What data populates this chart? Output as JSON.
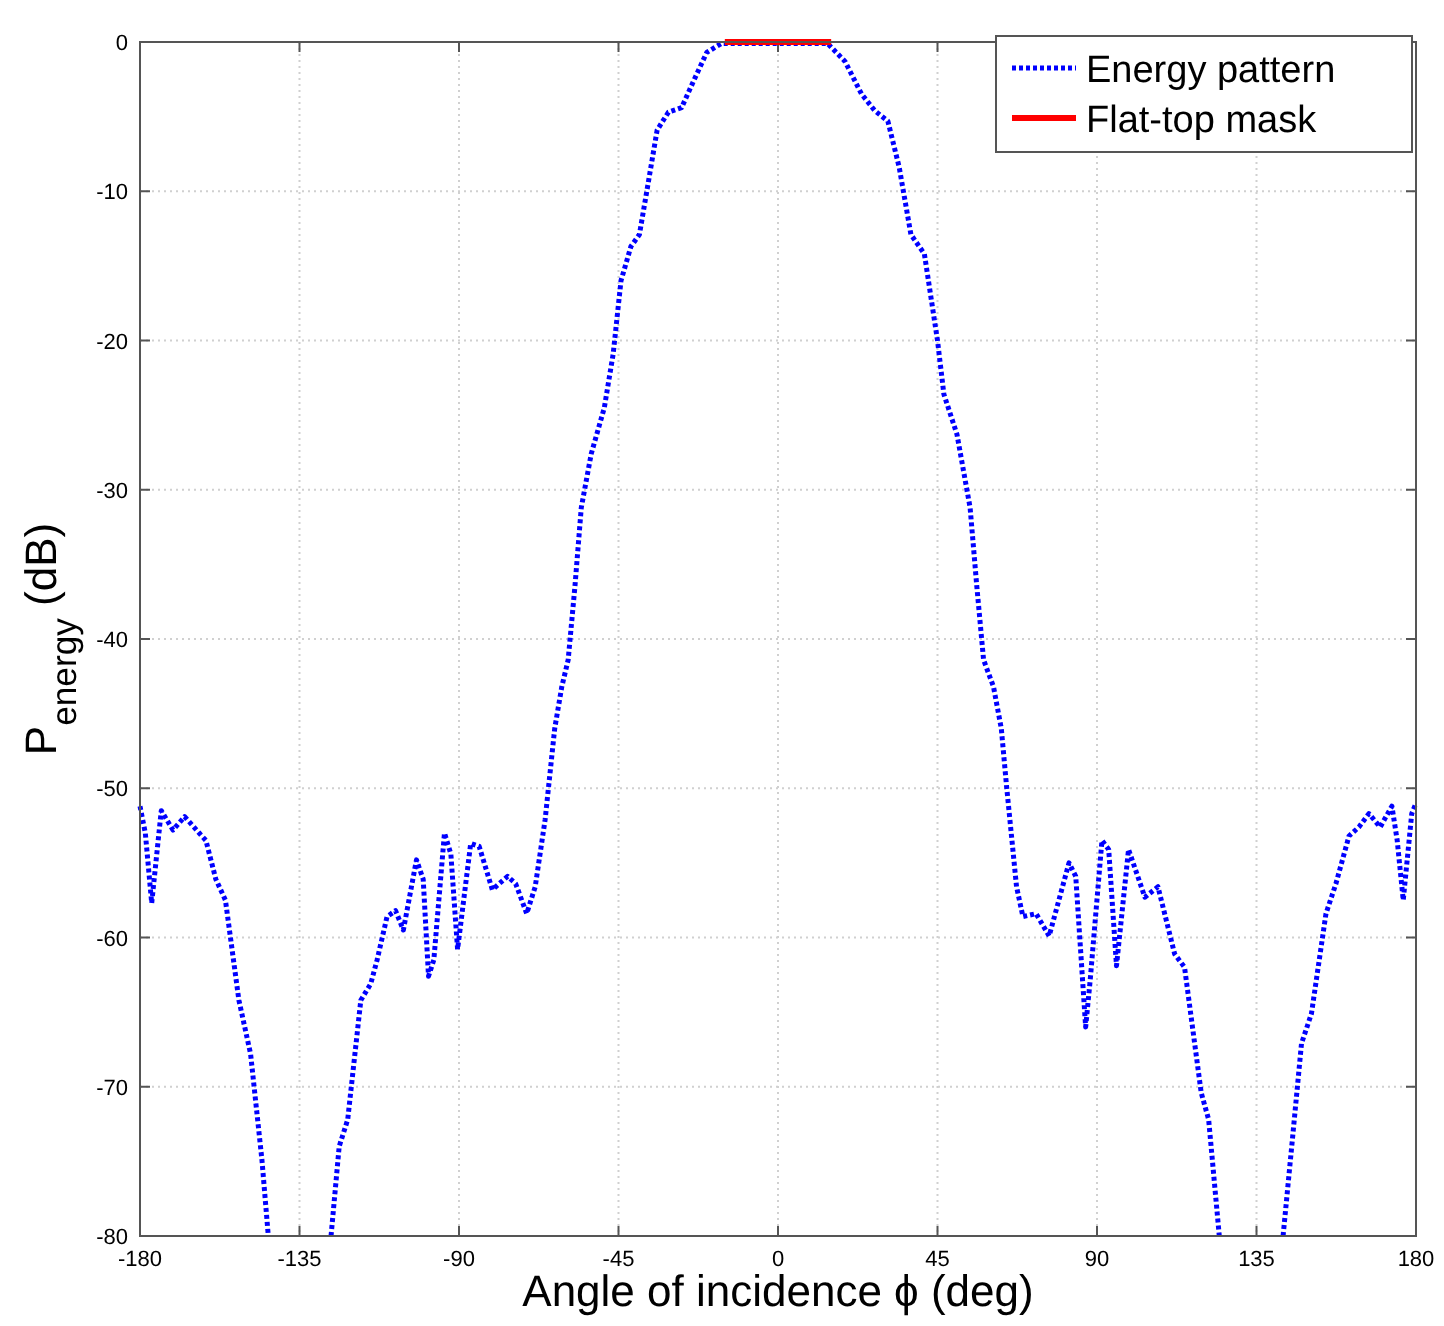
{
  "chart_data": {
    "type": "line",
    "xlabel": "Angle of incidence ϕ (deg)",
    "ylabel": "P$_{energy}$ (dB)",
    "xlim": [
      -180,
      180
    ],
    "ylim": [
      -80,
      0
    ],
    "xticks": [
      -180,
      -135,
      -90,
      -45,
      0,
      45,
      90,
      135,
      180
    ],
    "yticks": [
      -80,
      -70,
      -60,
      -50,
      -40,
      -30,
      -20,
      -10,
      0
    ],
    "grid": true,
    "legend": "top right",
    "series": [
      {
        "name": "Energy pattern",
        "color": "#0000ff",
        "line_style": "dotted",
        "x": [
          -180,
          -178.5,
          -176.7,
          -174,
          -170.7,
          -167.4,
          -163.3,
          -161.4,
          -158.6,
          -155.9,
          -152.1,
          -148.8,
          -145.6,
          -143.8,
          -135,
          -126.1,
          -123.8,
          -121.4,
          -117.7,
          -114.9,
          -113.1,
          -110.3,
          -107.9,
          -105.7,
          -102,
          -100.1,
          -98.6,
          -97.1,
          -94.1,
          -92.3,
          -90.4,
          -86.7,
          -84.3,
          -80.6,
          -76.3,
          -74,
          -70.9,
          -68.5,
          -65.7,
          -63,
          -61,
          -59.2,
          -57.3,
          -55.5,
          -52.7,
          -49,
          -46.5,
          -44.3,
          -41.5,
          -39.1,
          -36.8,
          -34.1,
          -30.9,
          -27.2,
          -23.8,
          -20.1,
          -16,
          14,
          18.9,
          23.6,
          27.3,
          31,
          34.2,
          37.5,
          41.3,
          45,
          46.8,
          50.5,
          54.2,
          56.1,
          58,
          60.8,
          63,
          64.5,
          67.3,
          69.1,
          72.8,
          76.5,
          82.1,
          84,
          86.8,
          88.1,
          91.4,
          93.3,
          95.5,
          98.9,
          103.5,
          107.2,
          111.9,
          114.7,
          119.4,
          121.5,
          124.5,
          135,
          142.5,
          145.3,
          147.7,
          150.5,
          154.6,
          157.4,
          161.1,
          163.9,
          166.7,
          169.9,
          173.2,
          174.7,
          176.4,
          178.8,
          180
        ],
        "values": [
          -51.2,
          -53,
          -57.7,
          -51.5,
          -52.8,
          -51.9,
          -53,
          -53.5,
          -56.1,
          -57.5,
          -64.2,
          -67.8,
          -74.9,
          -80,
          null,
          -80,
          -74,
          -72.2,
          -64.2,
          -63.1,
          -61.5,
          -58.6,
          -58.2,
          -59.5,
          -54.8,
          -56.1,
          -62.6,
          -61.5,
          -53,
          -54.4,
          -60.8,
          -53.7,
          -53.9,
          -56.8,
          -55.9,
          -56.4,
          -58.4,
          -56.6,
          -52.1,
          -46,
          -43.2,
          -41.4,
          -36.5,
          -31.2,
          -27.6,
          -24.5,
          -20.9,
          -16,
          -13.7,
          -12.9,
          -9.7,
          -5.9,
          -4.7,
          -4.4,
          -2.6,
          -0.7,
          -0.1,
          -0.1,
          -1.3,
          -3.5,
          -4.6,
          -5.3,
          -8.4,
          -12.9,
          -14.2,
          -20,
          -23.6,
          -26.3,
          -31.2,
          -36.5,
          -41.4,
          -43.2,
          -46,
          -49.9,
          -56.6,
          -58.6,
          -58.4,
          -59.9,
          -55,
          -55.9,
          -66,
          -62.8,
          -53.5,
          -54.1,
          -61.9,
          -54.1,
          -57.3,
          -56.6,
          -61.1,
          -62,
          -70.4,
          -72.2,
          -80,
          null,
          -80,
          -73.1,
          -67.1,
          -65.1,
          -58.4,
          -56.4,
          -53.2,
          -52.6,
          -51.7,
          -52.6,
          -51.2,
          -53.5,
          -57.5,
          -51.7,
          -51
        ]
      },
      {
        "name": "Flat-top mask",
        "color": "#ff0000",
        "line_style": "solid",
        "x": [
          -15,
          15
        ],
        "values": [
          0,
          0
        ]
      }
    ]
  }
}
